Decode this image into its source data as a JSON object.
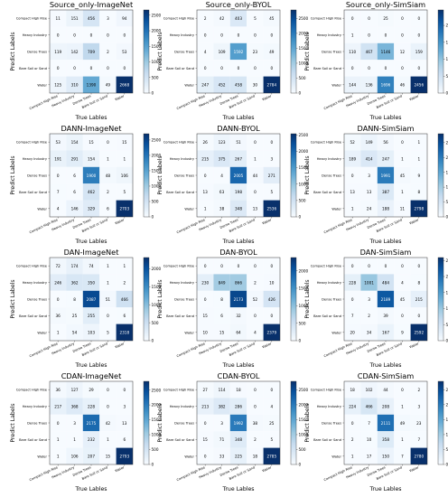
{
  "class_labels": [
    "Compact High Rise",
    "Heavy Industry",
    "Dense Trees",
    "Bare Soil or Sand",
    "Water"
  ],
  "x_axis_label": "True Lables",
  "y_axis_label": "Predict Labels",
  "chart_data": [
    {
      "type": "heatmap",
      "title": "Source_only-ImageNet",
      "matrix": [
        [
          11,
          151,
          456,
          3,
          94
        ],
        [
          0,
          0,
          0,
          0,
          0
        ],
        [
          119,
          142,
          709,
          2,
          53
        ],
        [
          0,
          0,
          0,
          0,
          0
        ],
        [
          125,
          310,
          1390,
          49,
          2668
        ]
      ],
      "colorbar_ticks": [
        0,
        500,
        1000,
        1500,
        2000,
        2500
      ],
      "vmax": 2668
    },
    {
      "type": "heatmap",
      "title": "Source_only-BYOL",
      "matrix": [
        [
          2,
          42,
          403,
          5,
          45
        ],
        [
          0,
          0,
          0,
          0,
          0
        ],
        [
          4,
          109,
          1592,
          23,
          49
        ],
        [
          0,
          0,
          0,
          0,
          0
        ],
        [
          247,
          452,
          458,
          30,
          2784
        ]
      ],
      "colorbar_ticks": [
        0,
        500,
        1000,
        1500,
        2000,
        2500
      ],
      "vmax": 2784
    },
    {
      "type": "heatmap",
      "title": "Source_only-SimSiam",
      "matrix": [
        [
          0,
          0,
          25,
          0,
          0
        ],
        [
          1,
          0,
          0,
          0,
          0
        ],
        [
          110,
          467,
          1146,
          12,
          159
        ],
        [
          0,
          0,
          0,
          0,
          0
        ],
        [
          144,
          136,
          1696,
          46,
          2456
        ]
      ],
      "colorbar_ticks": [
        0,
        500,
        1000,
        1500,
        2000,
        2500
      ],
      "vmax": 2456
    },
    {
      "type": "heatmap",
      "title": "DANN-ImageNet",
      "matrix": [
        [
          53,
          154,
          15,
          0,
          15
        ],
        [
          191,
          291,
          154,
          1,
          1
        ],
        [
          0,
          6,
          1900,
          48,
          106
        ],
        [
          7,
          6,
          462,
          2,
          5
        ],
        [
          4,
          146,
          329,
          6,
          2703
        ]
      ],
      "colorbar_ticks": [
        0,
        500,
        1000,
        1500,
        2000,
        2500
      ],
      "vmax": 2703
    },
    {
      "type": "heatmap",
      "title": "DANN-BYOL",
      "matrix": [
        [
          26,
          123,
          51,
          0,
          0
        ],
        [
          215,
          375,
          267,
          1,
          3
        ],
        [
          0,
          4,
          2005,
          44,
          271
        ],
        [
          13,
          63,
          198,
          0,
          5
        ],
        [
          1,
          38,
          348,
          13,
          2536
        ]
      ],
      "colorbar_ticks": [
        0,
        500,
        1000,
        1500,
        2000,
        2500
      ],
      "vmax": 2536
    },
    {
      "type": "heatmap",
      "title": "DANN-SimSiam",
      "matrix": [
        [
          52,
          149,
          56,
          0,
          1
        ],
        [
          189,
          414,
          247,
          1,
          1
        ],
        [
          0,
          3,
          1991,
          45,
          9
        ],
        [
          13,
          13,
          387,
          1,
          8
        ],
        [
          1,
          24,
          188,
          11,
          2798
        ]
      ],
      "colorbar_ticks": [
        0,
        500,
        1000,
        1500,
        2000,
        2500
      ],
      "vmax": 2798
    },
    {
      "type": "heatmap",
      "title": "DAN-ImageNet",
      "matrix": [
        [
          72,
          174,
          74,
          1,
          1
        ],
        [
          246,
          362,
          350,
          1,
          2
        ],
        [
          0,
          8,
          2087,
          51,
          466
        ],
        [
          36,
          25,
          255,
          0,
          6
        ],
        [
          1,
          54,
          103,
          5,
          2318
        ]
      ],
      "colorbar_ticks": [
        0,
        500,
        1000,
        1500,
        2000
      ],
      "vmax": 2318
    },
    {
      "type": "heatmap",
      "title": "DAN-BYOL",
      "matrix": [
        [
          0,
          0,
          0,
          0,
          0
        ],
        [
          230,
          849,
          866,
          2,
          10
        ],
        [
          0,
          8,
          2173,
          52,
          426
        ],
        [
          15,
          6,
          32,
          0,
          0
        ],
        [
          10,
          15,
          64,
          4,
          2379
        ]
      ],
      "colorbar_ticks": [
        0,
        500,
        1000,
        1500,
        2000
      ],
      "vmax": 2379
    },
    {
      "type": "heatmap",
      "title": "DAN-SimSiam",
      "matrix": [
        [
          0,
          0,
          0,
          0,
          0
        ],
        [
          228,
          1001,
          484,
          4,
          8
        ],
        [
          0,
          3,
          2189,
          45,
          215
        ],
        [
          7,
          2,
          39,
          0,
          0
        ],
        [
          20,
          34,
          167,
          9,
          2592
        ]
      ],
      "colorbar_ticks": [
        0,
        500,
        1000,
        1500,
        2000,
        2500
      ],
      "vmax": 2592
    },
    {
      "type": "heatmap",
      "title": "CDAN-ImageNet",
      "matrix": [
        [
          36,
          127,
          29,
          0,
          0
        ],
        [
          217,
          368,
          228,
          0,
          3
        ],
        [
          0,
          3,
          2175,
          42,
          13
        ],
        [
          1,
          1,
          232,
          1,
          6
        ],
        [
          1,
          106,
          207,
          15,
          2793
        ]
      ],
      "colorbar_ticks": [
        0,
        500,
        1000,
        1500,
        2000,
        2500
      ],
      "vmax": 2793
    },
    {
      "type": "heatmap",
      "title": "CDAN-BYOL",
      "matrix": [
        [
          27,
          114,
          18,
          0,
          0
        ],
        [
          213,
          382,
          286,
          0,
          4
        ],
        [
          0,
          3,
          1992,
          38,
          25
        ],
        [
          15,
          71,
          348,
          2,
          5
        ],
        [
          0,
          33,
          225,
          18,
          2785
        ]
      ],
      "colorbar_ticks": [
        0,
        500,
        1000,
        1500,
        2000,
        2500
      ],
      "vmax": 2785
    },
    {
      "type": "heatmap",
      "title": "CDAN-SimSiam",
      "matrix": [
        [
          18,
          102,
          44,
          0,
          2
        ],
        [
          224,
          466,
          208,
          1,
          3
        ],
        [
          0,
          7,
          2111,
          49,
          23
        ],
        [
          2,
          10,
          358,
          1,
          7
        ],
        [
          1,
          17,
          150,
          7,
          2780
        ]
      ],
      "colorbar_ticks": [
        0,
        500,
        1000,
        1500,
        2000,
        2500
      ],
      "vmax": 2780
    }
  ],
  "colors": {
    "low": "#f7fbff",
    "high": "#08306b",
    "grid_text_dark": "#000000",
    "grid_text_light": "#ffffff"
  }
}
